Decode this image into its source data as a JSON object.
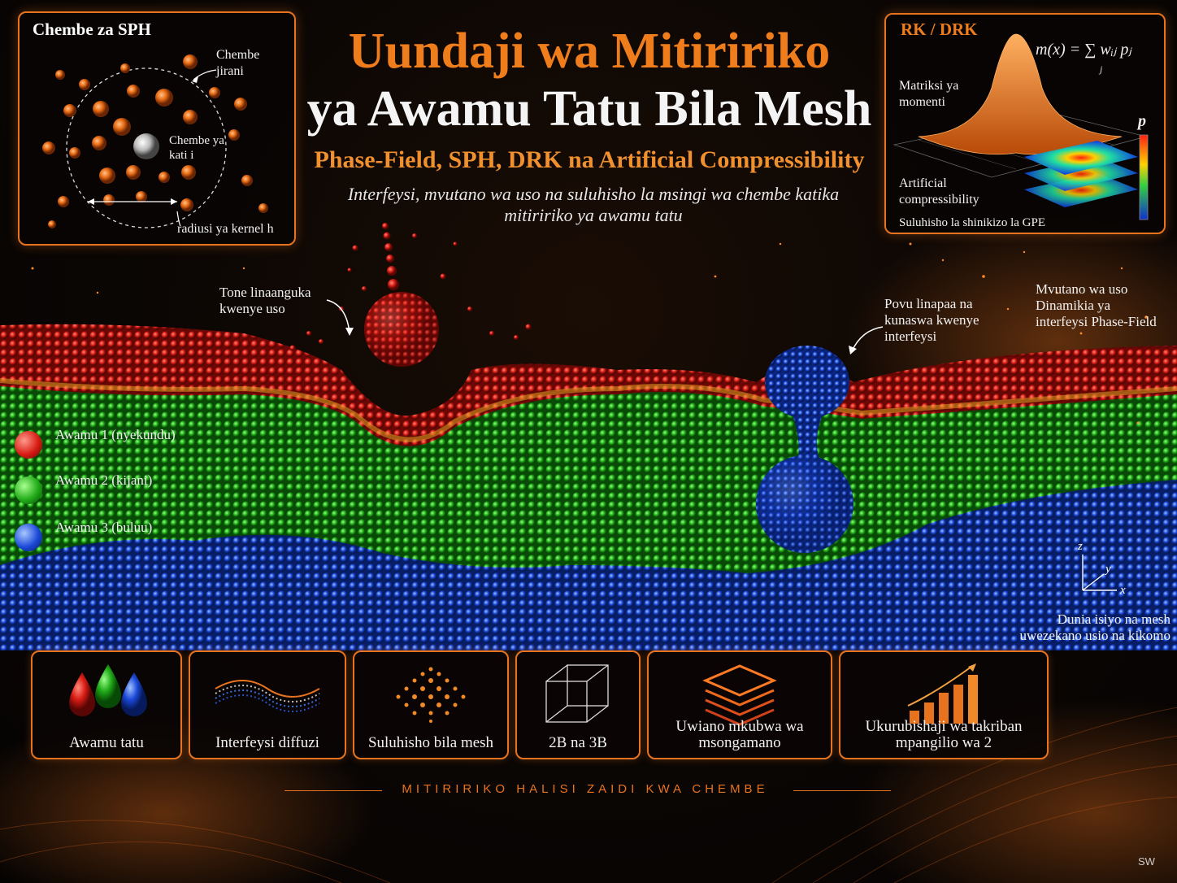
{
  "title": {
    "line1": "Uundaji wa Mitiririko",
    "line2": "ya Awamu Tatu Bila Mesh"
  },
  "subtitle": "Phase-Field, SPH, DRK na Artificial Compressibility",
  "lead": "Interfeysi, mvutano wa uso na suluhisho la msingi wa chembe katika mitiririko ya awamu tatu",
  "sph_panel": {
    "title": "Chembe za SPH",
    "neighbor_label": "Chembe jirani",
    "center_label": "Chembe ya kati i",
    "kernel_label": "radiusi ya kernel h"
  },
  "rk_panel": {
    "title": "RK / DRK",
    "formula": "m(x) = ∑ wᵢⱼ pⱼ",
    "formula_index": "j",
    "moment_label": "Matriksi ya momenti",
    "ac_label": "Artificial compressibility",
    "gpe_label": "Suluhisho la shinikizo la GPE",
    "p_label": "p"
  },
  "annotations": {
    "drop": "Tone linaanguka kwenye uso",
    "bubble": "Povu linapaa na kunaswa kwenye interfeysi",
    "right_info": "Mvutano wa uso Dinamikia ya interfeysi Phase-Field",
    "meshless_world": "Dunia isiyo na mesh uwezekano usio na kikomo",
    "axes": {
      "z": "z",
      "y": "y",
      "x": "x"
    }
  },
  "legend": [
    {
      "label": "Awamu 1 (nyekundu)",
      "color": "#e0201a"
    },
    {
      "label": "Awamu 2 (kijani)",
      "color": "#22b31c"
    },
    {
      "label": "Awamu 3 (buluu)",
      "color": "#1d4fe0"
    }
  ],
  "cards": [
    {
      "label": "Awamu tatu",
      "icon": "three-drops-icon"
    },
    {
      "label": "Interfeysi diffuzi",
      "icon": "diffuse-interface-icon"
    },
    {
      "label": "Suluhisho bila mesh",
      "icon": "particle-cloud-icon"
    },
    {
      "label": "2B na 3B",
      "icon": "cube-icon"
    },
    {
      "label": "Uwiano mkubwa wa msongamano",
      "icon": "layers-icon"
    },
    {
      "label": "Ukurubishaji wa takriban mpangilio wa 2",
      "icon": "growth-chart-icon"
    }
  ],
  "footer": "MITIRIRIKO HALISI ZAIDI KWA CHEMBE",
  "corner_mark": "SW",
  "colors": {
    "accent": "#e8731f",
    "phase1": "#e0201a",
    "phase2": "#22b31c",
    "phase3": "#1d4fe0"
  }
}
